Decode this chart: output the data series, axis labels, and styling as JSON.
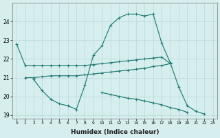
{
  "xlabel": "Humidex (Indice chaleur)",
  "x": [
    0,
    1,
    2,
    3,
    4,
    5,
    6,
    7,
    8,
    9,
    10,
    11,
    12,
    13,
    14,
    15,
    16,
    17,
    18,
    19,
    20,
    21,
    22,
    23
  ],
  "line_top": [
    22.8,
    21.65,
    21.65,
    21.65,
    21.65,
    21.65,
    21.65,
    21.65,
    21.65,
    21.7,
    21.75,
    21.8,
    21.85,
    21.9,
    21.95,
    22.0,
    22.05,
    22.1,
    21.75,
    null,
    null,
    null,
    null,
    null
  ],
  "line_peak": [
    null,
    null,
    20.9,
    20.3,
    19.85,
    19.6,
    19.5,
    19.3,
    20.6,
    22.2,
    22.7,
    23.8,
    24.2,
    24.4,
    24.4,
    24.3,
    24.4,
    22.85,
    21.8,
    20.5,
    19.5,
    19.2,
    19.05,
    null
  ],
  "line_mid": [
    null,
    21.0,
    21.0,
    21.05,
    21.1,
    21.1,
    21.1,
    21.1,
    21.15,
    21.2,
    21.25,
    21.3,
    21.35,
    21.4,
    21.45,
    21.5,
    21.6,
    21.65,
    21.75,
    null,
    null,
    null,
    null,
    null
  ],
  "line_low": [
    null,
    null,
    null,
    null,
    null,
    null,
    null,
    null,
    null,
    null,
    20.2,
    20.1,
    20.0,
    19.9,
    19.85,
    19.75,
    19.65,
    19.55,
    19.4,
    19.3,
    19.15,
    null,
    null,
    null
  ],
  "ylim": [
    18.8,
    25.0
  ],
  "yticks": [
    19,
    20,
    21,
    22,
    23,
    24
  ],
  "color": "#1e7b72",
  "bg_color": "#d6eeee",
  "grid_color": "#b8d8d8"
}
